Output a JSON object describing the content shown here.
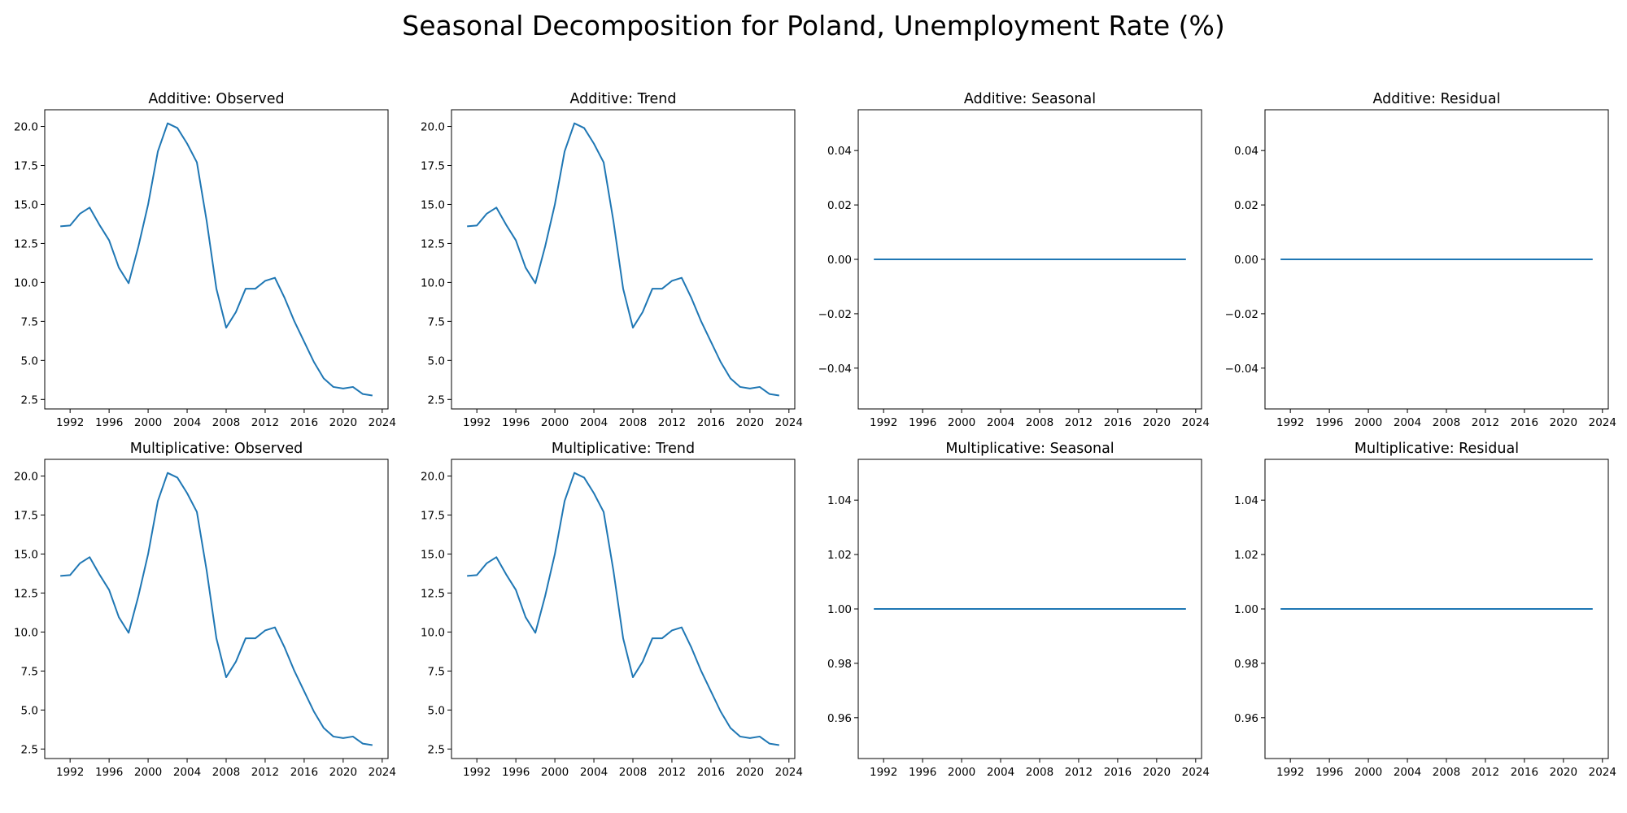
{
  "figure": {
    "title": "Seasonal Decomposition for Poland, Unemployment Rate (%)"
  },
  "colors": {
    "line": "#1f77b4",
    "axes": "#000000",
    "background": "#ffffff"
  },
  "chart_data": [
    {
      "type": "line",
      "title": "Additive: Observed",
      "xlabel": "",
      "ylabel": "",
      "x": [
        1991,
        1992,
        1993,
        1994,
        1995,
        1996,
        1997,
        1998,
        1999,
        2000,
        2001,
        2002,
        2003,
        2004,
        2005,
        2006,
        2007,
        2008,
        2009,
        2010,
        2011,
        2012,
        2013,
        2014,
        2015,
        2016,
        2017,
        2018,
        2019,
        2020,
        2021,
        2022,
        2023
      ],
      "series": [
        {
          "values": [
            13.6,
            13.65,
            14.4,
            14.8,
            13.7,
            12.7,
            10.95,
            9.95,
            12.3,
            15.0,
            18.4,
            20.2,
            19.9,
            18.9,
            17.7,
            13.95,
            9.6,
            7.1,
            8.1,
            9.6,
            9.6,
            10.1,
            10.3,
            9.0,
            7.5,
            6.2,
            4.9,
            3.85,
            3.3,
            3.2,
            3.3,
            2.85,
            2.75
          ]
        }
      ],
      "xticks": [
        "1992",
        "1996",
        "2000",
        "2004",
        "2008",
        "2012",
        "2016",
        "2020",
        "2024"
      ],
      "yticks": [
        "2.5",
        "5.0",
        "7.5",
        "10.0",
        "12.5",
        "15.0",
        "17.5",
        "20.0"
      ],
      "xlim": [
        1989.4,
        2024.6
      ],
      "ylim": [
        1.89,
        21.07
      ],
      "grid": false
    },
    {
      "type": "line",
      "title": "Additive: Trend",
      "xlabel": "",
      "ylabel": "",
      "x": [
        1991,
        1992,
        1993,
        1994,
        1995,
        1996,
        1997,
        1998,
        1999,
        2000,
        2001,
        2002,
        2003,
        2004,
        2005,
        2006,
        2007,
        2008,
        2009,
        2010,
        2011,
        2012,
        2013,
        2014,
        2015,
        2016,
        2017,
        2018,
        2019,
        2020,
        2021,
        2022,
        2023
      ],
      "series": [
        {
          "values": [
            13.6,
            13.65,
            14.4,
            14.8,
            13.7,
            12.7,
            10.95,
            9.95,
            12.3,
            15.0,
            18.4,
            20.2,
            19.9,
            18.9,
            17.7,
            13.95,
            9.6,
            7.1,
            8.1,
            9.6,
            9.6,
            10.1,
            10.3,
            9.0,
            7.5,
            6.2,
            4.9,
            3.85,
            3.3,
            3.2,
            3.3,
            2.85,
            2.75
          ]
        }
      ],
      "xticks": [
        "1992",
        "1996",
        "2000",
        "2004",
        "2008",
        "2012",
        "2016",
        "2020",
        "2024"
      ],
      "yticks": [
        "2.5",
        "5.0",
        "7.5",
        "10.0",
        "12.5",
        "15.0",
        "17.5",
        "20.0"
      ],
      "xlim": [
        1989.4,
        2024.6
      ],
      "ylim": [
        1.89,
        21.07
      ],
      "grid": false
    },
    {
      "type": "line",
      "title": "Additive: Seasonal",
      "xlabel": "",
      "ylabel": "",
      "x": [
        1991,
        2023
      ],
      "series": [
        {
          "values": [
            0.0,
            0.0
          ]
        }
      ],
      "xticks": [
        "1992",
        "1996",
        "2000",
        "2004",
        "2008",
        "2012",
        "2016",
        "2020",
        "2024"
      ],
      "yticks": [
        "−0.04",
        "−0.02",
        "0.00",
        "0.02",
        "0.04"
      ],
      "xlim": [
        1989.4,
        2024.6
      ],
      "ylim": [
        -0.055,
        0.055
      ],
      "grid": false
    },
    {
      "type": "line",
      "title": "Additive: Residual",
      "xlabel": "",
      "ylabel": "",
      "x": [
        1991,
        2023
      ],
      "series": [
        {
          "values": [
            0.0,
            0.0
          ]
        }
      ],
      "xticks": [
        "1992",
        "1996",
        "2000",
        "2004",
        "2008",
        "2012",
        "2016",
        "2020",
        "2024"
      ],
      "yticks": [
        "−0.04",
        "−0.02",
        "0.00",
        "0.02",
        "0.04"
      ],
      "xlim": [
        1989.4,
        2024.6
      ],
      "ylim": [
        -0.055,
        0.055
      ],
      "grid": false
    },
    {
      "type": "line",
      "title": "Multiplicative: Observed",
      "xlabel": "",
      "ylabel": "",
      "x": [
        1991,
        1992,
        1993,
        1994,
        1995,
        1996,
        1997,
        1998,
        1999,
        2000,
        2001,
        2002,
        2003,
        2004,
        2005,
        2006,
        2007,
        2008,
        2009,
        2010,
        2011,
        2012,
        2013,
        2014,
        2015,
        2016,
        2017,
        2018,
        2019,
        2020,
        2021,
        2022,
        2023
      ],
      "series": [
        {
          "values": [
            13.6,
            13.65,
            14.4,
            14.8,
            13.7,
            12.7,
            10.95,
            9.95,
            12.3,
            15.0,
            18.4,
            20.2,
            19.9,
            18.9,
            17.7,
            13.95,
            9.6,
            7.1,
            8.1,
            9.6,
            9.6,
            10.1,
            10.3,
            9.0,
            7.5,
            6.2,
            4.9,
            3.85,
            3.3,
            3.2,
            3.3,
            2.85,
            2.75
          ]
        }
      ],
      "xticks": [
        "1992",
        "1996",
        "2000",
        "2004",
        "2008",
        "2012",
        "2016",
        "2020",
        "2024"
      ],
      "yticks": [
        "2.5",
        "5.0",
        "7.5",
        "10.0",
        "12.5",
        "15.0",
        "17.5",
        "20.0"
      ],
      "xlim": [
        1989.4,
        2024.6
      ],
      "ylim": [
        1.89,
        21.07
      ],
      "grid": false
    },
    {
      "type": "line",
      "title": "Multiplicative: Trend",
      "xlabel": "",
      "ylabel": "",
      "x": [
        1991,
        1992,
        1993,
        1994,
        1995,
        1996,
        1997,
        1998,
        1999,
        2000,
        2001,
        2002,
        2003,
        2004,
        2005,
        2006,
        2007,
        2008,
        2009,
        2010,
        2011,
        2012,
        2013,
        2014,
        2015,
        2016,
        2017,
        2018,
        2019,
        2020,
        2021,
        2022,
        2023
      ],
      "series": [
        {
          "values": [
            13.6,
            13.65,
            14.4,
            14.8,
            13.7,
            12.7,
            10.95,
            9.95,
            12.3,
            15.0,
            18.4,
            20.2,
            19.9,
            18.9,
            17.7,
            13.95,
            9.6,
            7.1,
            8.1,
            9.6,
            9.6,
            10.1,
            10.3,
            9.0,
            7.5,
            6.2,
            4.9,
            3.85,
            3.3,
            3.2,
            3.3,
            2.85,
            2.75
          ]
        }
      ],
      "xticks": [
        "1992",
        "1996",
        "2000",
        "2004",
        "2008",
        "2012",
        "2016",
        "2020",
        "2024"
      ],
      "yticks": [
        "2.5",
        "5.0",
        "7.5",
        "10.0",
        "12.5",
        "15.0",
        "17.5",
        "20.0"
      ],
      "xlim": [
        1989.4,
        2024.6
      ],
      "ylim": [
        1.89,
        21.07
      ],
      "grid": false
    },
    {
      "type": "line",
      "title": "Multiplicative: Seasonal",
      "xlabel": "",
      "ylabel": "",
      "x": [
        1991,
        2023
      ],
      "series": [
        {
          "values": [
            1.0,
            1.0
          ]
        }
      ],
      "xticks": [
        "1992",
        "1996",
        "2000",
        "2004",
        "2008",
        "2012",
        "2016",
        "2020",
        "2024"
      ],
      "yticks": [
        "0.96",
        "0.98",
        "1.00",
        "1.02",
        "1.04"
      ],
      "xlim": [
        1989.4,
        2024.6
      ],
      "ylim": [
        0.945,
        1.055
      ],
      "grid": false
    },
    {
      "type": "line",
      "title": "Multiplicative: Residual",
      "xlabel": "",
      "ylabel": "",
      "x": [
        1991,
        2023
      ],
      "series": [
        {
          "values": [
            1.0,
            1.0
          ]
        }
      ],
      "xticks": [
        "1992",
        "1996",
        "2000",
        "2004",
        "2008",
        "2012",
        "2016",
        "2020",
        "2024"
      ],
      "yticks": [
        "0.96",
        "0.98",
        "1.00",
        "1.02",
        "1.04"
      ],
      "xlim": [
        1989.4,
        2024.6
      ],
      "ylim": [
        0.945,
        1.055
      ],
      "grid": false
    }
  ]
}
